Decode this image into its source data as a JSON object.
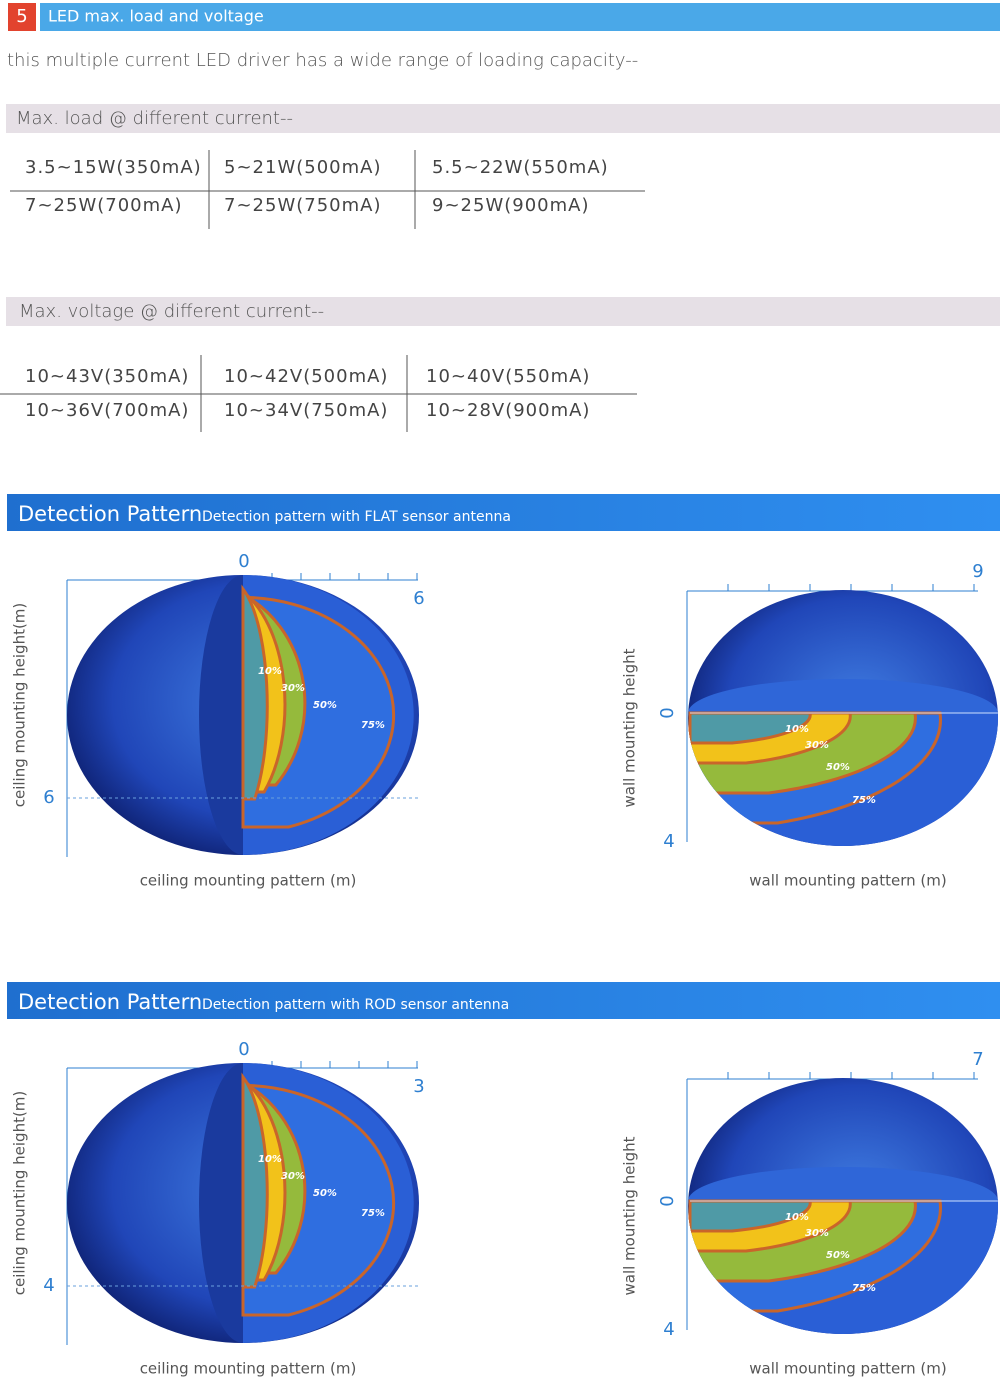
{
  "section": {
    "number": "5",
    "title": "LED max. load and voltage"
  },
  "intro": "this multiple current LED driver has a wide range of loading capacity--",
  "load": {
    "heading": "Max. load @ different current--",
    "rows": [
      [
        "3.5~15W(350mA)",
        "5~21W(500mA)",
        "5.5~22W(550mA)"
      ],
      [
        "7~25W(700mA)",
        "7~25W(750mA)",
        "9~25W(900mA)"
      ]
    ]
  },
  "voltage": {
    "heading": "Max. voltage @ different current--",
    "rows": [
      [
        "10~43V(350mA)",
        "10~42V(500mA)",
        "10~40V(550mA)"
      ],
      [
        "10~36V(700mA)",
        "10~34V(750mA)",
        "10~28V(900mA)"
      ]
    ]
  },
  "patterns": [
    {
      "title": "Detection Pattern",
      "subtitle": "Detection pattern with FLAT sensor antenna",
      "ceiling": {
        "origin": "0",
        "range": "6",
        "height": "6",
        "y_label": "ceiling mounting height(m)",
        "x_label": "ceiling mounting pattern (m)",
        "zones": [
          "10%",
          "30%",
          "50%",
          "75%"
        ]
      },
      "wall": {
        "origin": "0",
        "range": "9",
        "height": "4",
        "y_label": "wall mounting height",
        "x_label": "wall mounting pattern (m)",
        "zones": [
          "10%",
          "30%",
          "50%",
          "75%"
        ]
      }
    },
    {
      "title": "Detection Pattern",
      "subtitle": "Detection pattern with ROD sensor antenna",
      "ceiling": {
        "origin": "0",
        "range": "3",
        "height": "4",
        "y_label": "ceiling mounting height(m)",
        "x_label": "ceiling mounting pattern (m)",
        "zones": [
          "10%",
          "30%",
          "50%",
          "75%"
        ]
      },
      "wall": {
        "origin": "0",
        "range": "7",
        "height": "4",
        "y_label": "wall mounting height",
        "x_label": "wall mounting pattern (m)",
        "zones": [
          "10%",
          "30%",
          "50%",
          "75%"
        ]
      }
    }
  ]
}
